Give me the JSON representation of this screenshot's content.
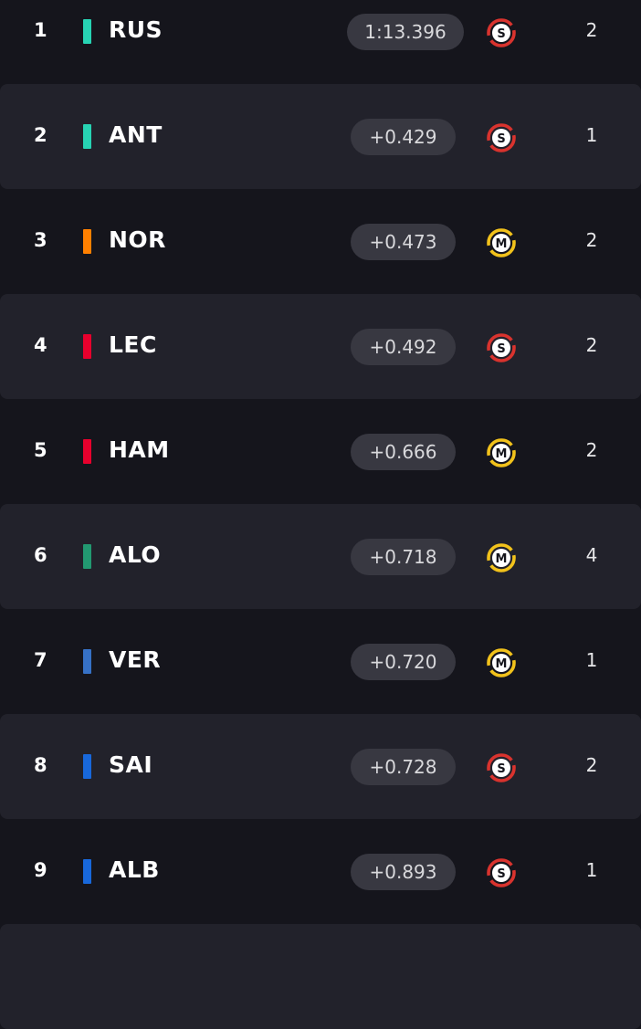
{
  "colors": {
    "background": "#15151c",
    "row_alt": "#22222b",
    "gap_pill": "#383841",
    "soft": "#d9332e",
    "medium": "#f2c21b"
  },
  "tyres": {
    "soft_letter": "S",
    "medium_letter": "M"
  },
  "rows": [
    {
      "pos": "1",
      "code": "RUS",
      "team_color": "#27d3b3",
      "gap": "1:13.396",
      "tyre": "soft",
      "laps": "2"
    },
    {
      "pos": "2",
      "code": "ANT",
      "team_color": "#27d3b3",
      "gap": "+0.429",
      "tyre": "soft",
      "laps": "1"
    },
    {
      "pos": "3",
      "code": "NOR",
      "team_color": "#ff8000",
      "gap": "+0.473",
      "tyre": "medium",
      "laps": "2"
    },
    {
      "pos": "4",
      "code": "LEC",
      "team_color": "#e8002d",
      "gap": "+0.492",
      "tyre": "soft",
      "laps": "2"
    },
    {
      "pos": "5",
      "code": "HAM",
      "team_color": "#e8002d",
      "gap": "+0.666",
      "tyre": "medium",
      "laps": "2"
    },
    {
      "pos": "6",
      "code": "ALO",
      "team_color": "#229971",
      "gap": "+0.718",
      "tyre": "medium",
      "laps": "4"
    },
    {
      "pos": "7",
      "code": "VER",
      "team_color": "#3671c6",
      "gap": "+0.720",
      "tyre": "medium",
      "laps": "1"
    },
    {
      "pos": "8",
      "code": "SAI",
      "team_color": "#1868db",
      "gap": "+0.728",
      "tyre": "soft",
      "laps": "2"
    },
    {
      "pos": "9",
      "code": "ALB",
      "team_color": "#1868db",
      "gap": "+0.893",
      "tyre": "soft",
      "laps": "1"
    }
  ]
}
